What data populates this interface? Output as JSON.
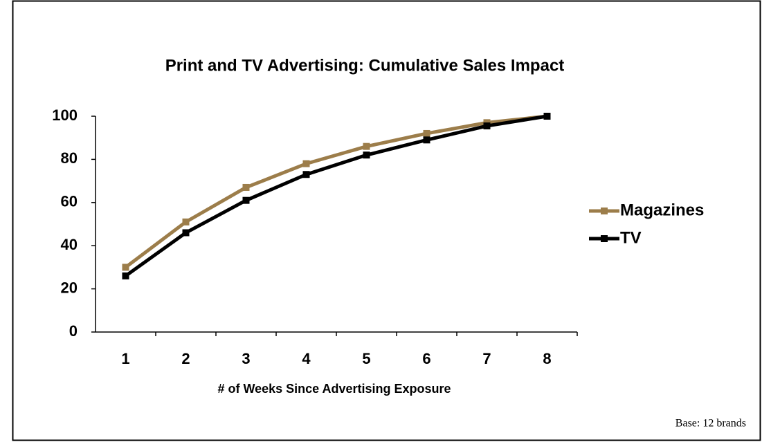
{
  "chart_data": {
    "type": "line",
    "title": "Print and TV Advertising: Cumulative Sales Impact",
    "x_label": "# of Weeks Since Advertising Exposure",
    "note": "Base: 12 brands",
    "categories": [
      "1",
      "2",
      "3",
      "4",
      "5",
      "6",
      "7",
      "8"
    ],
    "series": [
      {
        "name": "Magazines",
        "color": "#9c7d4a",
        "values": [
          30,
          51,
          67,
          78,
          86,
          92,
          97,
          100
        ]
      },
      {
        "name": "TV",
        "color": "#000000",
        "values": [
          26,
          46,
          61,
          73,
          82,
          89,
          95.5,
          100
        ]
      }
    ],
    "ylim": [
      0,
      100
    ],
    "yticks": [
      0,
      20,
      40,
      60,
      80,
      100
    ],
    "legend": "right",
    "grid": false
  }
}
